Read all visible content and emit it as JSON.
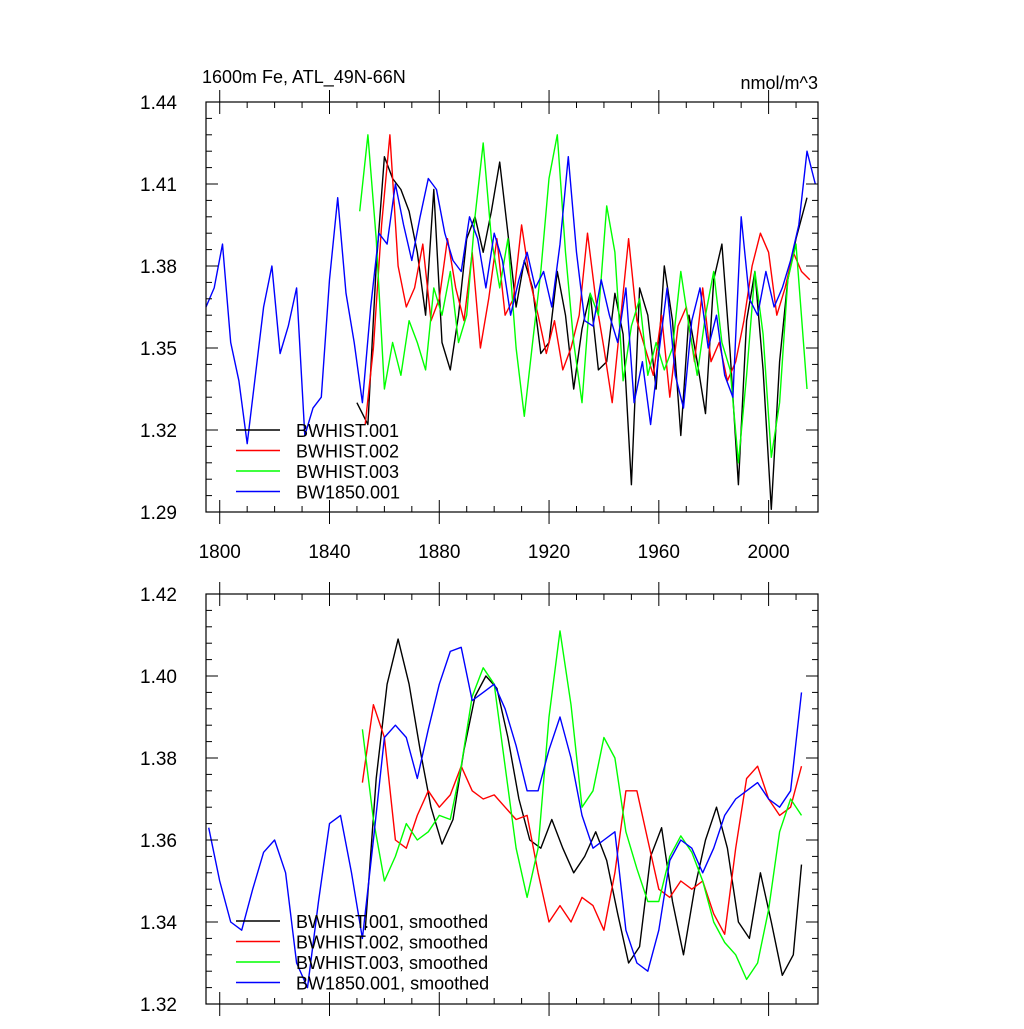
{
  "chart_data": [
    {
      "type": "line",
      "title": "1600m Fe, ATL_49N-66N",
      "units": "nmol/m^3",
      "xlabel": "",
      "ylabel": "",
      "xlim": [
        1795,
        2018
      ],
      "ylim": [
        1.29,
        1.44
      ],
      "xticks": [
        1800,
        1840,
        1880,
        1920,
        1960,
        2000
      ],
      "yticks": [
        1.29,
        1.32,
        1.35,
        1.38,
        1.41,
        1.44
      ],
      "legend_position": "bottom-left",
      "series": [
        {
          "name": "BWHIST.001",
          "color": "#000000",
          "x": [
            1850,
            1854,
            1857,
            1860,
            1863,
            1866,
            1869,
            1872,
            1875,
            1878,
            1881,
            1884,
            1887,
            1890,
            1893,
            1896,
            1899,
            1902,
            1905,
            1908,
            1911,
            1914,
            1917,
            1920,
            1923,
            1926,
            1929,
            1932,
            1935,
            1938,
            1941,
            1944,
            1947,
            1950,
            1953,
            1956,
            1959,
            1962,
            1965,
            1968,
            1971,
            1974,
            1977,
            1980,
            1983,
            1986,
            1989,
            1992,
            1995,
            1998,
            2001,
            2004,
            2007,
            2010,
            2014
          ],
          "values": [
            1.33,
            1.322,
            1.38,
            1.42,
            1.412,
            1.408,
            1.4,
            1.385,
            1.362,
            1.408,
            1.352,
            1.342,
            1.362,
            1.39,
            1.398,
            1.385,
            1.4,
            1.418,
            1.392,
            1.365,
            1.382,
            1.372,
            1.348,
            1.352,
            1.378,
            1.362,
            1.335,
            1.357,
            1.37,
            1.342,
            1.345,
            1.37,
            1.355,
            1.3,
            1.372,
            1.362,
            1.335,
            1.38,
            1.36,
            1.318,
            1.362,
            1.345,
            1.326,
            1.375,
            1.388,
            1.348,
            1.3,
            1.36,
            1.378,
            1.342,
            1.291,
            1.345,
            1.375,
            1.39,
            1.405
          ]
        },
        {
          "name": "BWHIST.002",
          "color": "#ff0000",
          "x": [
            1853,
            1856,
            1859,
            1862,
            1865,
            1868,
            1871,
            1874,
            1877,
            1880,
            1883,
            1886,
            1889,
            1892,
            1895,
            1898,
            1901,
            1904,
            1907,
            1910,
            1913,
            1916,
            1919,
            1922,
            1925,
            1928,
            1931,
            1934,
            1937,
            1940,
            1943,
            1946,
            1949,
            1952,
            1955,
            1958,
            1961,
            1964,
            1967,
            1970,
            1973,
            1976,
            1979,
            1982,
            1985,
            1988,
            1991,
            1994,
            1997,
            2000,
            2003,
            2006,
            2009,
            2012,
            2015
          ],
          "values": [
            1.322,
            1.35,
            1.395,
            1.428,
            1.38,
            1.365,
            1.372,
            1.388,
            1.36,
            1.368,
            1.39,
            1.372,
            1.36,
            1.385,
            1.35,
            1.368,
            1.39,
            1.362,
            1.368,
            1.395,
            1.375,
            1.362,
            1.348,
            1.36,
            1.342,
            1.35,
            1.362,
            1.392,
            1.368,
            1.35,
            1.33,
            1.36,
            1.39,
            1.36,
            1.35,
            1.34,
            1.362,
            1.332,
            1.358,
            1.365,
            1.345,
            1.372,
            1.345,
            1.352,
            1.338,
            1.345,
            1.36,
            1.38,
            1.392,
            1.385,
            1.362,
            1.372,
            1.385,
            1.378,
            1.375
          ]
        },
        {
          "name": "BWHIST.003",
          "color": "#00ff00",
          "x": [
            1851,
            1854,
            1857,
            1860,
            1863,
            1866,
            1869,
            1872,
            1875,
            1878,
            1881,
            1884,
            1887,
            1890,
            1893,
            1896,
            1899,
            1902,
            1905,
            1908,
            1911,
            1914,
            1917,
            1920,
            1923,
            1926,
            1929,
            1932,
            1935,
            1938,
            1941,
            1944,
            1947,
            1950,
            1953,
            1956,
            1959,
            1962,
            1965,
            1968,
            1971,
            1974,
            1977,
            1980,
            1983,
            1986,
            1989,
            1992,
            1995,
            1998,
            2001,
            2004,
            2007,
            2010,
            2014
          ],
          "values": [
            1.4,
            1.428,
            1.39,
            1.335,
            1.352,
            1.34,
            1.36,
            1.352,
            1.342,
            1.372,
            1.362,
            1.378,
            1.352,
            1.362,
            1.398,
            1.425,
            1.39,
            1.372,
            1.39,
            1.35,
            1.325,
            1.352,
            1.378,
            1.412,
            1.428,
            1.385,
            1.352,
            1.33,
            1.37,
            1.362,
            1.402,
            1.385,
            1.338,
            1.358,
            1.368,
            1.34,
            1.352,
            1.342,
            1.35,
            1.378,
            1.358,
            1.34,
            1.362,
            1.378,
            1.352,
            1.342,
            1.308,
            1.34,
            1.378,
            1.355,
            1.31,
            1.33,
            1.375,
            1.388,
            1.335
          ]
        },
        {
          "name": "BW1850.001",
          "color": "#0000ff",
          "x": [
            1795,
            1798,
            1801,
            1804,
            1807,
            1810,
            1813,
            1816,
            1819,
            1822,
            1825,
            1828,
            1831,
            1834,
            1837,
            1840,
            1843,
            1846,
            1849,
            1852,
            1855,
            1858,
            1861,
            1864,
            1867,
            1870,
            1873,
            1876,
            1879,
            1882,
            1885,
            1888,
            1891,
            1894,
            1897,
            1900,
            1903,
            1906,
            1909,
            1912,
            1915,
            1918,
            1921,
            1924,
            1927,
            1930,
            1933,
            1936,
            1939,
            1942,
            1945,
            1948,
            1951,
            1954,
            1957,
            1960,
            1963,
            1966,
            1969,
            1972,
            1975,
            1978,
            1981,
            1984,
            1987,
            1990,
            1993,
            1996,
            1999,
            2002,
            2005,
            2008,
            2011,
            2014,
            2017
          ],
          "values": [
            1.365,
            1.372,
            1.388,
            1.352,
            1.338,
            1.315,
            1.34,
            1.365,
            1.38,
            1.348,
            1.358,
            1.372,
            1.318,
            1.328,
            1.332,
            1.375,
            1.405,
            1.37,
            1.352,
            1.33,
            1.365,
            1.392,
            1.388,
            1.41,
            1.395,
            1.382,
            1.398,
            1.412,
            1.408,
            1.392,
            1.382,
            1.378,
            1.398,
            1.39,
            1.372,
            1.392,
            1.382,
            1.362,
            1.375,
            1.385,
            1.372,
            1.378,
            1.365,
            1.388,
            1.42,
            1.385,
            1.36,
            1.358,
            1.375,
            1.362,
            1.352,
            1.372,
            1.33,
            1.345,
            1.322,
            1.348,
            1.372,
            1.34,
            1.328,
            1.36,
            1.372,
            1.35,
            1.362,
            1.34,
            1.332,
            1.398,
            1.368,
            1.362,
            1.378,
            1.365,
            1.372,
            1.382,
            1.395,
            1.422,
            1.41
          ]
        }
      ]
    },
    {
      "type": "line",
      "title": "",
      "xlabel": "",
      "ylabel": "",
      "xlim": [
        1795,
        2018
      ],
      "ylim": [
        1.32,
        1.42
      ],
      "yticks": [
        1.32,
        1.34,
        1.36,
        1.38,
        1.4,
        1.42
      ],
      "xticks": [
        1800,
        1840,
        1880,
        1920,
        1960,
        2000
      ],
      "legend_position": "bottom-left",
      "series": [
        {
          "name": "BWHIST.001, smoothed",
          "color": "#000000",
          "x": [
            1853,
            1857,
            1861,
            1865,
            1869,
            1873,
            1877,
            1881,
            1885,
            1889,
            1893,
            1897,
            1901,
            1905,
            1909,
            1913,
            1917,
            1921,
            1925,
            1929,
            1933,
            1937,
            1941,
            1945,
            1949,
            1953,
            1957,
            1961,
            1965,
            1969,
            1973,
            1977,
            1981,
            1985,
            1989,
            1993,
            1997,
            2001,
            2005,
            2009,
            2012
          ],
          "values": [
            1.338,
            1.375,
            1.398,
            1.409,
            1.398,
            1.382,
            1.368,
            1.359,
            1.365,
            1.382,
            1.395,
            1.4,
            1.397,
            1.385,
            1.37,
            1.36,
            1.358,
            1.365,
            1.358,
            1.352,
            1.356,
            1.362,
            1.355,
            1.342,
            1.33,
            1.334,
            1.356,
            1.363,
            1.345,
            1.332,
            1.348,
            1.36,
            1.368,
            1.358,
            1.34,
            1.336,
            1.352,
            1.34,
            1.327,
            1.332,
            1.354
          ]
        },
        {
          "name": "BWHIST.002, smoothed",
          "color": "#ff0000",
          "x": [
            1852,
            1856,
            1860,
            1864,
            1868,
            1872,
            1876,
            1880,
            1884,
            1888,
            1892,
            1896,
            1900,
            1904,
            1908,
            1912,
            1916,
            1920,
            1924,
            1928,
            1932,
            1936,
            1940,
            1944,
            1948,
            1952,
            1956,
            1960,
            1964,
            1968,
            1972,
            1976,
            1980,
            1984,
            1988,
            1992,
            1996,
            2000,
            2004,
            2008,
            2012
          ],
          "values": [
            1.374,
            1.393,
            1.385,
            1.36,
            1.358,
            1.366,
            1.372,
            1.368,
            1.371,
            1.378,
            1.372,
            1.37,
            1.371,
            1.368,
            1.365,
            1.366,
            1.352,
            1.34,
            1.344,
            1.34,
            1.346,
            1.344,
            1.338,
            1.352,
            1.372,
            1.372,
            1.36,
            1.348,
            1.346,
            1.35,
            1.348,
            1.35,
            1.342,
            1.337,
            1.358,
            1.375,
            1.378,
            1.37,
            1.366,
            1.368,
            1.378
          ]
        },
        {
          "name": "BWHIST.003, smoothed",
          "color": "#00ff00",
          "x": [
            1852,
            1856,
            1860,
            1864,
            1868,
            1872,
            1876,
            1880,
            1884,
            1888,
            1892,
            1896,
            1900,
            1904,
            1908,
            1912,
            1916,
            1920,
            1924,
            1928,
            1932,
            1936,
            1940,
            1944,
            1948,
            1952,
            1956,
            1960,
            1964,
            1968,
            1972,
            1976,
            1980,
            1984,
            1988,
            1992,
            1996,
            2000,
            2004,
            2008,
            2012
          ],
          "values": [
            1.387,
            1.365,
            1.35,
            1.356,
            1.364,
            1.36,
            1.362,
            1.366,
            1.365,
            1.378,
            1.395,
            1.402,
            1.398,
            1.378,
            1.358,
            1.346,
            1.358,
            1.39,
            1.411,
            1.393,
            1.368,
            1.372,
            1.385,
            1.38,
            1.362,
            1.353,
            1.345,
            1.345,
            1.356,
            1.361,
            1.357,
            1.35,
            1.34,
            1.335,
            1.332,
            1.326,
            1.33,
            1.343,
            1.362,
            1.37,
            1.366
          ]
        },
        {
          "name": "BW1850.001, smoothed",
          "color": "#0000ff",
          "x": [
            1796,
            1800,
            1804,
            1808,
            1812,
            1816,
            1820,
            1824,
            1828,
            1832,
            1836,
            1840,
            1844,
            1848,
            1852,
            1856,
            1860,
            1864,
            1868,
            1872,
            1876,
            1880,
            1884,
            1888,
            1892,
            1896,
            1900,
            1904,
            1908,
            1912,
            1916,
            1920,
            1924,
            1928,
            1932,
            1936,
            1940,
            1944,
            1948,
            1952,
            1956,
            1960,
            1964,
            1968,
            1972,
            1976,
            1980,
            1984,
            1988,
            1992,
            1996,
            2000,
            2004,
            2008,
            2012
          ],
          "values": [
            1.363,
            1.35,
            1.34,
            1.338,
            1.348,
            1.357,
            1.36,
            1.352,
            1.33,
            1.324,
            1.345,
            1.364,
            1.366,
            1.352,
            1.336,
            1.36,
            1.385,
            1.388,
            1.385,
            1.375,
            1.387,
            1.398,
            1.406,
            1.407,
            1.394,
            1.396,
            1.398,
            1.392,
            1.383,
            1.372,
            1.372,
            1.382,
            1.39,
            1.38,
            1.366,
            1.358,
            1.36,
            1.362,
            1.338,
            1.33,
            1.328,
            1.338,
            1.355,
            1.36,
            1.358,
            1.352,
            1.358,
            1.366,
            1.37,
            1.372,
            1.374,
            1.37,
            1.368,
            1.372,
            1.396
          ]
        }
      ]
    }
  ]
}
